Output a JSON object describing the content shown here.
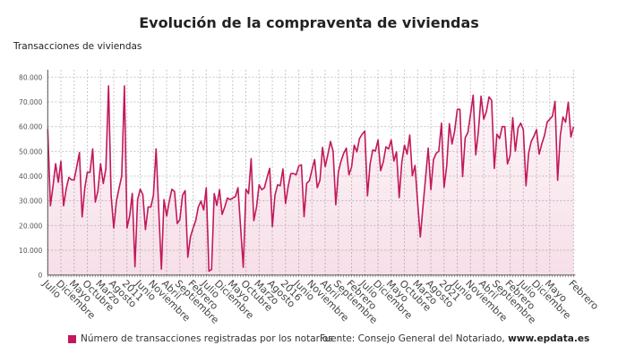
{
  "chart_data": {
    "type": "area",
    "title": "Evolución de la compraventa de viviendas",
    "ylabel": "Transacciones de viviendas",
    "xlabel": "",
    "ylim": [
      0,
      80000
    ],
    "yticks": [
      "0",
      "10.000",
      "20.000",
      "30.000",
      "40.000",
      "50.000",
      "60.000",
      "70.000",
      "80.000"
    ],
    "grid": true,
    "legend_position": "bottom-left",
    "color": "#c2185b",
    "x_start": "Julio 2008",
    "x_end": "Febrero 2025",
    "xtick_labels": [
      "Julio",
      "Diciembre",
      "Mayo",
      "Octubre",
      "Marzo",
      "Agosto",
      "2011",
      "Junio",
      "Noviembre",
      "Abril",
      "Septiembre",
      "Febrero",
      "Julio",
      "Diciembre",
      "Mayo",
      "Octubre",
      "Marzo",
      "Agosto",
      "2016",
      "Junio",
      "Noviembre",
      "Abril",
      "Septiembre",
      "Febrero",
      "Julio",
      "Diciembre",
      "Mayo",
      "Octubre",
      "Marzo",
      "Agosto",
      "2021",
      "Junio",
      "Noviembre",
      "Abril",
      "Septiembre",
      "Febrero",
      "Julio",
      "Diciembre",
      "Mayo",
      "Febrero"
    ],
    "series": [
      {
        "name": "Número de transacciones registradas por los notarios",
        "values": [
          59000,
          28000,
          36000,
          45000,
          37500,
          46000,
          28000,
          35000,
          39500,
          38500,
          38500,
          44000,
          49500,
          23500,
          35000,
          41500,
          41500,
          51000,
          29500,
          34000,
          45000,
          37000,
          43000,
          76500,
          32000,
          19000,
          30000,
          35000,
          40000,
          76500,
          19000,
          24000,
          33000,
          3400,
          30500,
          34700,
          32500,
          18400,
          27500,
          27500,
          32300,
          51000,
          26700,
          2400,
          30500,
          23900,
          29900,
          34700,
          33700,
          20800,
          22400,
          32300,
          34100,
          7200,
          15400,
          19000,
          22000,
          27500,
          29900,
          26300,
          35300,
          1600,
          2200,
          32900,
          28100,
          34500,
          24500,
          27500,
          31100,
          30500,
          31100,
          31700,
          35300,
          19000,
          3100,
          34700,
          32900,
          47000,
          22000,
          27500,
          36500,
          34500,
          35300,
          39500,
          43100,
          19600,
          32300,
          36500,
          36100,
          42900,
          28900,
          36000,
          41000,
          41000,
          40500,
          44100,
          44600,
          23600,
          37100,
          38100,
          42500,
          46700,
          35300,
          38300,
          51600,
          43800,
          48600,
          54000,
          50100,
          28400,
          41700,
          46100,
          49200,
          51300,
          40500,
          43800,
          52500,
          49800,
          55200,
          57000,
          58200,
          32000,
          44900,
          50600,
          50100,
          54600,
          42200,
          45800,
          51800,
          51000,
          54600,
          46100,
          49800,
          31300,
          45500,
          52500,
          48900,
          56600,
          40100,
          44300,
          29300,
          15400,
          27500,
          39500,
          51300,
          34500,
          46700,
          49200,
          50000,
          61400,
          35500,
          44300,
          61200,
          53000,
          58200,
          67000,
          67000,
          39800,
          55500,
          57600,
          64800,
          72700,
          48600,
          58000,
          72300,
          63000,
          66000,
          72000,
          70600,
          43100,
          57000,
          55200,
          60000,
          60000,
          44900,
          48200,
          63600,
          50100,
          59400,
          61400,
          58800,
          36100,
          49200,
          54000,
          56100,
          58800,
          48900,
          53000,
          56400,
          61800,
          63000,
          64200,
          70200,
          38300,
          56400,
          63900,
          61800,
          69900,
          55800,
          60000
        ]
      }
    ]
  },
  "source": {
    "prefix": "Fuente: Consejo General del Notariado, ",
    "site": "www.epdata.es"
  }
}
